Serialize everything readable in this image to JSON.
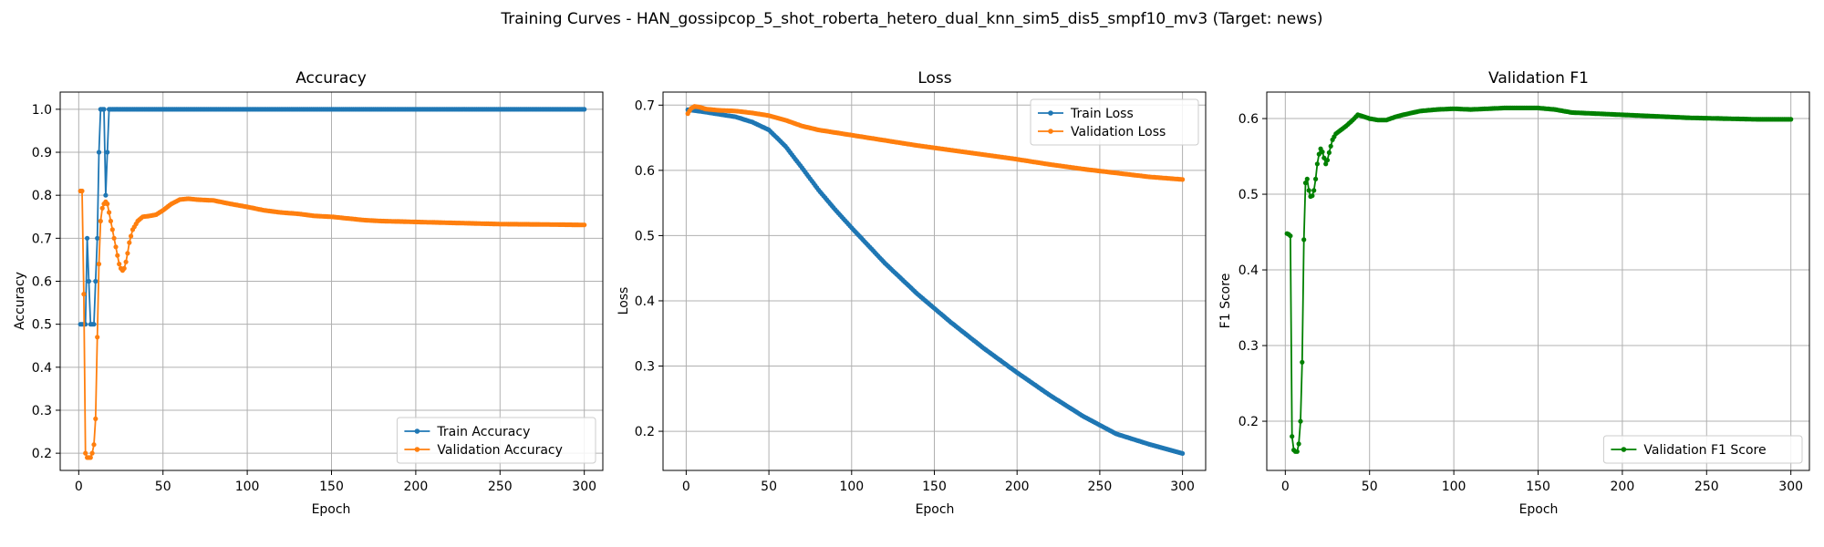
{
  "suptitle": "Training Curves - HAN_gossipcop_5_shot_roberta_hetero_dual_knn_sim5_dis5_smpf10_mv3 (Target: news)",
  "colors": {
    "blue": "#1f77b4",
    "orange": "#ff7f0e",
    "green": "#008000",
    "grid": "#b0b0b0"
  },
  "chart_data": [
    {
      "type": "line",
      "title": "Accuracy",
      "xlabel": "Epoch",
      "ylabel": "Accuracy",
      "xlim": [
        -11,
        311
      ],
      "ylim": [
        0.16,
        1.04
      ],
      "xticks": [
        0,
        50,
        100,
        150,
        200,
        250,
        300
      ],
      "yticks": [
        0.2,
        0.3,
        0.4,
        0.5,
        0.6,
        0.7,
        0.8,
        0.9,
        1.0
      ],
      "grid": true,
      "legend_position": "lower-right",
      "series": [
        {
          "name": "Train Accuracy",
          "color": "#1f77b4",
          "points": [
            [
              1,
              0.5
            ],
            [
              2,
              0.5
            ],
            [
              3,
              0.5
            ],
            [
              4,
              0.5
            ],
            [
              5,
              0.7
            ],
            [
              6,
              0.6
            ],
            [
              7,
              0.5
            ],
            [
              8,
              0.5
            ],
            [
              9,
              0.5
            ],
            [
              10,
              0.6
            ],
            [
              11,
              0.7
            ],
            [
              12,
              0.9
            ],
            [
              13,
              1.0
            ],
            [
              14,
              1.0
            ],
            [
              15,
              1.0
            ],
            [
              16,
              0.8
            ],
            [
              17,
              0.9
            ],
            [
              18,
              1.0
            ],
            [
              30,
              1.0
            ],
            [
              60,
              1.0
            ],
            [
              100,
              1.0
            ],
            [
              150,
              1.0
            ],
            [
              200,
              1.0
            ],
            [
              250,
              1.0
            ],
            [
              300,
              1.0
            ]
          ]
        },
        {
          "name": "Validation Accuracy",
          "color": "#ff7f0e",
          "points": [
            [
              1,
              0.81
            ],
            [
              2,
              0.81
            ],
            [
              3,
              0.57
            ],
            [
              4,
              0.2
            ],
            [
              5,
              0.19
            ],
            [
              6,
              0.19
            ],
            [
              7,
              0.19
            ],
            [
              8,
              0.2
            ],
            [
              9,
              0.22
            ],
            [
              10,
              0.28
            ],
            [
              11,
              0.47
            ],
            [
              12,
              0.64
            ],
            [
              13,
              0.74
            ],
            [
              14,
              0.77
            ],
            [
              15,
              0.78
            ],
            [
              16,
              0.785
            ],
            [
              17,
              0.78
            ],
            [
              18,
              0.76
            ],
            [
              19,
              0.74
            ],
            [
              20,
              0.72
            ],
            [
              21,
              0.7
            ],
            [
              22,
              0.68
            ],
            [
              23,
              0.66
            ],
            [
              24,
              0.64
            ],
            [
              25,
              0.63
            ],
            [
              26,
              0.625
            ],
            [
              27,
              0.63
            ],
            [
              28,
              0.645
            ],
            [
              29,
              0.665
            ],
            [
              30,
              0.69
            ],
            [
              32,
              0.72
            ],
            [
              35,
              0.74
            ],
            [
              38,
              0.75
            ],
            [
              42,
              0.752
            ],
            [
              46,
              0.755
            ],
            [
              50,
              0.765
            ],
            [
              55,
              0.78
            ],
            [
              60,
              0.79
            ],
            [
              65,
              0.792
            ],
            [
              70,
              0.79
            ],
            [
              80,
              0.788
            ],
            [
              90,
              0.78
            ],
            [
              100,
              0.773
            ],
            [
              110,
              0.765
            ],
            [
              120,
              0.76
            ],
            [
              130,
              0.757
            ],
            [
              140,
              0.752
            ],
            [
              150,
              0.75
            ],
            [
              160,
              0.746
            ],
            [
              170,
              0.742
            ],
            [
              180,
              0.74
            ],
            [
              200,
              0.738
            ],
            [
              220,
              0.736
            ],
            [
              250,
              0.733
            ],
            [
              280,
              0.732
            ],
            [
              300,
              0.731
            ]
          ]
        }
      ]
    },
    {
      "type": "line",
      "title": "Loss",
      "xlabel": "Epoch",
      "ylabel": "Loss",
      "xlim": [
        -14,
        314
      ],
      "ylim": [
        0.14,
        0.72
      ],
      "xticks": [
        0,
        50,
        100,
        150,
        200,
        250,
        300
      ],
      "yticks": [
        0.2,
        0.3,
        0.4,
        0.5,
        0.6,
        0.7
      ],
      "grid": true,
      "legend_position": "upper-right",
      "series": [
        {
          "name": "Train Loss",
          "color": "#1f77b4",
          "points": [
            [
              1,
              0.693
            ],
            [
              10,
              0.69
            ],
            [
              20,
              0.686
            ],
            [
              30,
              0.682
            ],
            [
              40,
              0.674
            ],
            [
              50,
              0.662
            ],
            [
              60,
              0.637
            ],
            [
              70,
              0.604
            ],
            [
              80,
              0.57
            ],
            [
              90,
              0.54
            ],
            [
              100,
              0.512
            ],
            [
              120,
              0.458
            ],
            [
              140,
              0.41
            ],
            [
              160,
              0.367
            ],
            [
              180,
              0.327
            ],
            [
              200,
              0.29
            ],
            [
              220,
              0.255
            ],
            [
              240,
              0.223
            ],
            [
              260,
              0.196
            ],
            [
              280,
              0.18
            ],
            [
              300,
              0.166
            ]
          ]
        },
        {
          "name": "Validation Loss",
          "color": "#ff7f0e",
          "points": [
            [
              1,
              0.687
            ],
            [
              3,
              0.695
            ],
            [
              5,
              0.698
            ],
            [
              8,
              0.697
            ],
            [
              12,
              0.694
            ],
            [
              20,
              0.692
            ],
            [
              30,
              0.691
            ],
            [
              40,
              0.688
            ],
            [
              50,
              0.684
            ],
            [
              60,
              0.677
            ],
            [
              70,
              0.668
            ],
            [
              80,
              0.662
            ],
            [
              90,
              0.658
            ],
            [
              100,
              0.654
            ],
            [
              120,
              0.646
            ],
            [
              140,
              0.638
            ],
            [
              160,
              0.631
            ],
            [
              180,
              0.624
            ],
            [
              200,
              0.617
            ],
            [
              220,
              0.609
            ],
            [
              240,
              0.602
            ],
            [
              260,
              0.596
            ],
            [
              280,
              0.59
            ],
            [
              300,
              0.586
            ]
          ]
        }
      ]
    },
    {
      "type": "line",
      "title": "Validation F1",
      "xlabel": "Epoch",
      "ylabel": "F1 Score",
      "xlim": [
        -11,
        311
      ],
      "ylim": [
        0.135,
        0.635
      ],
      "xticks": [
        0,
        50,
        100,
        150,
        200,
        250,
        300
      ],
      "yticks": [
        0.2,
        0.3,
        0.4,
        0.5,
        0.6
      ],
      "grid": true,
      "legend_position": "lower-right",
      "series": [
        {
          "name": "Validation F1 Score",
          "color": "#008000",
          "points": [
            [
              1,
              0.448
            ],
            [
              2,
              0.447
            ],
            [
              3,
              0.445
            ],
            [
              4,
              0.18
            ],
            [
              5,
              0.162
            ],
            [
              6,
              0.16
            ],
            [
              7,
              0.16
            ],
            [
              8,
              0.17
            ],
            [
              9,
              0.2
            ],
            [
              10,
              0.278
            ],
            [
              11,
              0.44
            ],
            [
              12,
              0.515
            ],
            [
              13,
              0.52
            ],
            [
              14,
              0.505
            ],
            [
              15,
              0.497
            ],
            [
              16,
              0.498
            ],
            [
              17,
              0.505
            ],
            [
              18,
              0.52
            ],
            [
              19,
              0.54
            ],
            [
              20,
              0.553
            ],
            [
              21,
              0.56
            ],
            [
              22,
              0.556
            ],
            [
              23,
              0.548
            ],
            [
              24,
              0.54
            ],
            [
              25,
              0.545
            ],
            [
              26,
              0.555
            ],
            [
              28,
              0.572
            ],
            [
              30,
              0.58
            ],
            [
              33,
              0.585
            ],
            [
              36,
              0.59
            ],
            [
              40,
              0.598
            ],
            [
              43,
              0.605
            ],
            [
              46,
              0.603
            ],
            [
              50,
              0.6
            ],
            [
              55,
              0.598
            ],
            [
              60,
              0.598
            ],
            [
              65,
              0.602
            ],
            [
              70,
              0.605
            ],
            [
              80,
              0.61
            ],
            [
              90,
              0.612
            ],
            [
              100,
              0.613
            ],
            [
              110,
              0.612
            ],
            [
              120,
              0.613
            ],
            [
              130,
              0.614
            ],
            [
              140,
              0.614
            ],
            [
              150,
              0.614
            ],
            [
              160,
              0.612
            ],
            [
              170,
              0.608
            ],
            [
              180,
              0.607
            ],
            [
              190,
              0.606
            ],
            [
              200,
              0.605
            ],
            [
              220,
              0.603
            ],
            [
              240,
              0.601
            ],
            [
              260,
              0.6
            ],
            [
              280,
              0.599
            ],
            [
              300,
              0.599
            ]
          ]
        }
      ]
    }
  ]
}
